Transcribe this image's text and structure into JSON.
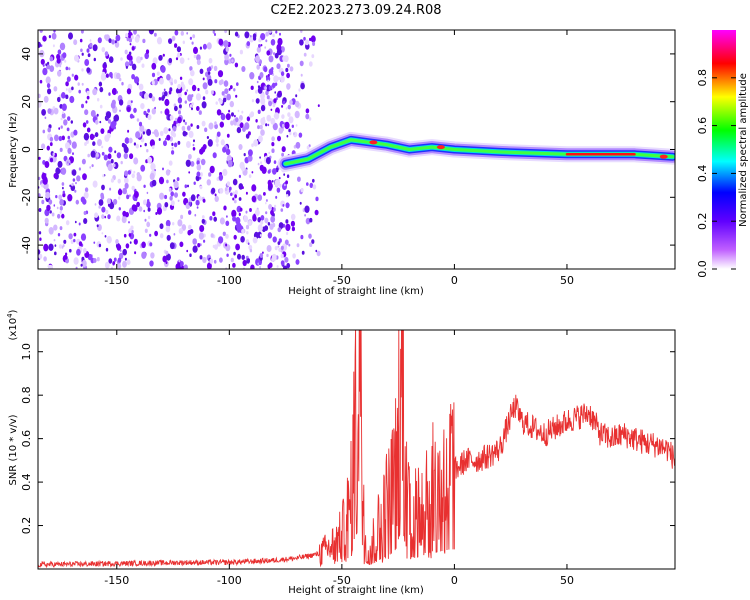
{
  "title": "C2E2.2023.273.09.24.R08",
  "chart_data": [
    {
      "type": "heatmap",
      "xlabel": "Height of straight line (km)",
      "ylabel": "Frequency (Hz)",
      "xlim": [
        -185,
        98
      ],
      "ylim": [
        -50,
        50
      ],
      "x_ticks": [
        -150,
        -100,
        -50,
        0,
        50
      ],
      "y_ticks": [
        -40,
        -20,
        0,
        20,
        40
      ],
      "noise_region_x": [
        -185,
        -60
      ],
      "signal_track": [
        {
          "x": -75,
          "y": -6
        },
        {
          "x": -65,
          "y": -4
        },
        {
          "x": -55,
          "y": 1
        },
        {
          "x": -46,
          "y": 4
        },
        {
          "x": -38,
          "y": 3
        },
        {
          "x": -30,
          "y": 2
        },
        {
          "x": -20,
          "y": 0
        },
        {
          "x": -10,
          "y": 1
        },
        {
          "x": 0,
          "y": 0
        },
        {
          "x": 20,
          "y": -1
        },
        {
          "x": 50,
          "y": -2
        },
        {
          "x": 80,
          "y": -2
        },
        {
          "x": 97,
          "y": -3
        }
      ],
      "colorbar": {
        "label": "Normalized spectral amplitude",
        "ticks": [
          0.0,
          0.2,
          0.4,
          0.6,
          0.8
        ],
        "range": [
          0,
          1
        ],
        "colormap": [
          "#ffffff",
          "#8000ff",
          "#0000ff",
          "#00ffff",
          "#00ff00",
          "#ffff00",
          "#ff0000",
          "#ff00ff"
        ]
      }
    },
    {
      "type": "line",
      "xlabel": "Height of straight line (km)",
      "ylabel": "SNR (10 * v/v)",
      "scale_label_base": "(x10",
      "scale_label_exp": "4",
      "scale_label_close": ")",
      "xlim": [
        -185,
        98
      ],
      "ylim": [
        0,
        1.1
      ],
      "x_ticks": [
        -150,
        -100,
        -50,
        0,
        50
      ],
      "y_ticks": [
        0.2,
        0.4,
        0.6,
        0.8,
        1.0
      ],
      "color": "#e83030",
      "series": [
        {
          "name": "SNR",
          "x": [
            -185,
            -150,
            -120,
            -100,
            -80,
            -70,
            -60,
            -55,
            -50,
            -46,
            -44,
            -42,
            -41,
            -40,
            -38,
            -35,
            -32,
            -30,
            -28,
            -26,
            -24,
            -23,
            -22,
            -20,
            -18,
            -15,
            -12,
            -10,
            -8,
            -5,
            -2,
            0,
            5,
            10,
            15,
            20,
            25,
            27,
            30,
            35,
            40,
            45,
            50,
            55,
            60,
            65,
            70,
            75,
            80,
            85,
            90,
            95,
            98
          ],
          "y": [
            0.02,
            0.025,
            0.03,
            0.03,
            0.04,
            0.05,
            0.07,
            0.1,
            0.15,
            0.3,
            0.7,
            1.1,
            0.6,
            0.2,
            0.1,
            0.15,
            0.25,
            0.3,
            0.35,
            0.45,
            0.85,
            1.05,
            0.6,
            0.3,
            0.25,
            0.3,
            0.4,
            0.35,
            0.38,
            0.42,
            0.45,
            0.45,
            0.5,
            0.5,
            0.52,
            0.55,
            0.7,
            0.75,
            0.68,
            0.65,
            0.62,
            0.65,
            0.68,
            0.7,
            0.72,
            0.62,
            0.6,
            0.62,
            0.6,
            0.58,
            0.57,
            0.55,
            0.5
          ]
        }
      ]
    }
  ]
}
